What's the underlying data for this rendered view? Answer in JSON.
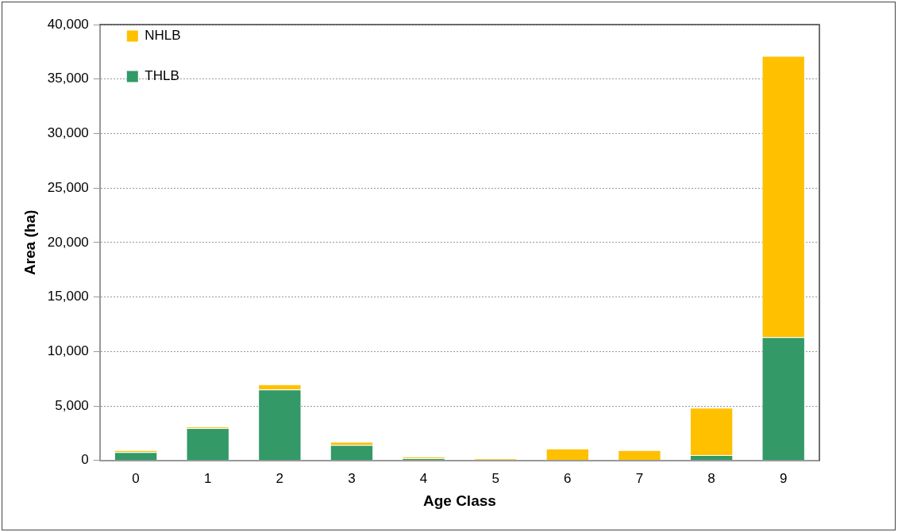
{
  "chart_data": {
    "type": "bar",
    "xlabel": "Age Class",
    "ylabel": "Area (ha)",
    "stacked": true,
    "categories": [
      "0",
      "1",
      "2",
      "3",
      "4",
      "5",
      "6",
      "7",
      "8",
      "9"
    ],
    "series": [
      {
        "name": "THLB",
        "color": "#339966",
        "values": [
          770,
          2960,
          6520,
          1420,
          210,
          0,
          0,
          0,
          490,
          11320
        ]
      },
      {
        "name": "NHLB",
        "color": "#ffc000",
        "values": [
          180,
          160,
          470,
          300,
          120,
          180,
          1100,
          950,
          4360,
          25810
        ]
      }
    ],
    "ylim": [
      0,
      40000
    ],
    "yticks": [
      {
        "value": 0,
        "label": "0"
      },
      {
        "value": 5000,
        "label": "5,000"
      },
      {
        "value": 10000,
        "label": "10,000"
      },
      {
        "value": 15000,
        "label": "15,000"
      },
      {
        "value": 20000,
        "label": "20,000"
      },
      {
        "value": 25000,
        "label": "25,000"
      },
      {
        "value": 30000,
        "label": "30,000"
      },
      {
        "value": 35000,
        "label": "35,000"
      },
      {
        "value": 40000,
        "label": "40,000"
      }
    ],
    "grid": "y",
    "legend": "top left"
  }
}
